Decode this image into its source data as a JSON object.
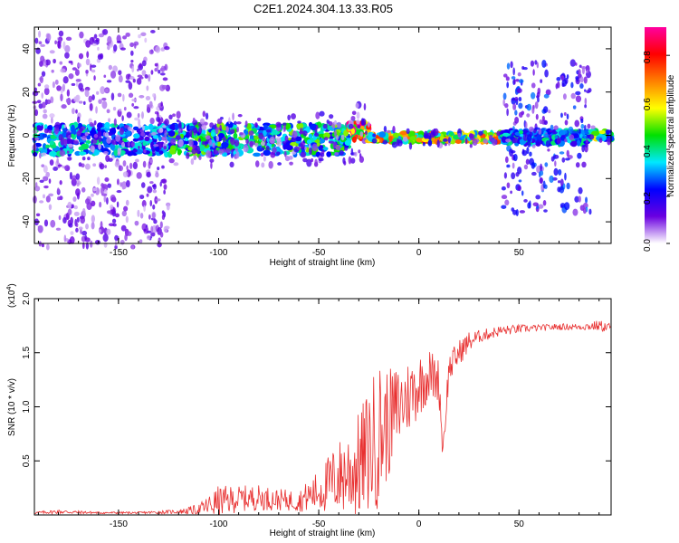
{
  "title": "C2E1.2024.304.13.33.R05",
  "colors": {
    "trace": "#e83030",
    "frame": "#000000"
  },
  "chart_data": [
    {
      "type": "heatmap",
      "xlabel": "Height of straight line (km)",
      "ylabel": "Frequency (Hz)",
      "xlim": [
        -192,
        96
      ],
      "ylim": [
        -50,
        50
      ],
      "xticks": [
        -150,
        -100,
        -50,
        0,
        50
      ],
      "yticks": [
        -40,
        -20,
        0,
        20,
        40
      ],
      "colorbar": {
        "label": "Normalized spectral amplitude",
        "range": [
          0,
          0.92
        ],
        "ticks": [
          0.0,
          0.2,
          0.4,
          0.6,
          0.8
        ],
        "colormap": [
          "#ffffff",
          "#6a00e0",
          "#0000ff",
          "#00e8ff",
          "#00e000",
          "#ffff00",
          "#ff8000",
          "#ff0000",
          "#ff00a0"
        ]
      },
      "bands": [
        {
          "x": [
            -192,
            -125
          ],
          "center_hz": -2,
          "core_halfwidth_hz": 7,
          "core_level": 0.3,
          "scatter_halfwidth_hz": 50,
          "scatter_level": 0.1
        },
        {
          "x": [
            -125,
            -35
          ],
          "center_hz": -2,
          "core_halfwidth_hz": 7,
          "core_level": 0.38,
          "scatter_halfwidth_hz": 12,
          "scatter_level": 0.12
        },
        {
          "x": [
            -35,
            -25
          ],
          "center_hz": 2,
          "core_halfwidth_hz": 4,
          "core_level": 0.75,
          "scatter_halfwidth_hz": 15,
          "scatter_level": 0.12
        },
        {
          "x": [
            -25,
            42
          ],
          "center_hz": -1,
          "core_halfwidth_hz": 2,
          "core_level": 0.55,
          "scatter_halfwidth_hz": 4,
          "scatter_level": 0.15
        },
        {
          "x": [
            42,
            86
          ],
          "center_hz": -1,
          "core_halfwidth_hz": 3,
          "core_level": 0.3,
          "scatter_halfwidth_hz": 35,
          "scatter_level": 0.2
        },
        {
          "x": [
            86,
            96
          ],
          "center_hz": 0,
          "core_halfwidth_hz": 2,
          "core_level": 0.45,
          "scatter_halfwidth_hz": 4,
          "scatter_level": 0.15
        }
      ]
    },
    {
      "type": "line",
      "xlabel": "Height of straight line (km)",
      "ylabel": "SNR (10 * v/v)",
      "scale_label": "(x10",
      "scale_exponent": "4",
      "scale_suffix": ")",
      "xlim": [
        -192,
        96
      ],
      "ylim": [
        0,
        2.0
      ],
      "xticks": [
        -150,
        -100,
        -50,
        0,
        50
      ],
      "yticks": [
        0.5,
        1.0,
        1.5,
        2.0
      ],
      "series": [
        {
          "x": [
            -192,
            -180,
            -160,
            -140,
            -120,
            -110,
            -100,
            -90,
            -80,
            -70,
            -60,
            -50,
            -40,
            -30,
            -25,
            -20,
            -15,
            -10,
            -5,
            0,
            5,
            10,
            12,
            15,
            20,
            25,
            30,
            40,
            50,
            60,
            70,
            80,
            90,
            96
          ],
          "y": [
            0.02,
            0.03,
            0.02,
            0.02,
            0.03,
            0.05,
            0.12,
            0.15,
            0.16,
            0.14,
            0.13,
            0.22,
            0.35,
            0.45,
            0.6,
            0.75,
            0.85,
            1.0,
            1.1,
            1.2,
            1.3,
            1.25,
            0.6,
            1.35,
            1.5,
            1.6,
            1.65,
            1.7,
            1.72,
            1.73,
            1.74,
            1.74,
            1.75,
            1.73
          ],
          "noise": [
            0.01,
            0.02,
            0.01,
            0.01,
            0.02,
            0.05,
            0.15,
            0.12,
            0.12,
            0.1,
            0.1,
            0.2,
            0.35,
            0.5,
            0.6,
            0.7,
            0.5,
            0.4,
            0.35,
            0.3,
            0.25,
            0.2,
            0.15,
            0.15,
            0.12,
            0.1,
            0.06,
            0.05,
            0.04,
            0.03,
            0.03,
            0.03,
            0.05,
            0.05
          ]
        }
      ]
    }
  ]
}
